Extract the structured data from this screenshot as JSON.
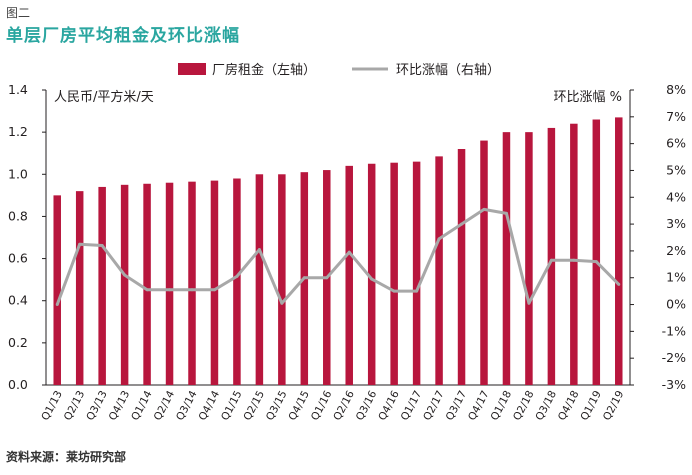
{
  "figure_label": "图二",
  "source": "资料来源：莱坊研究部",
  "colors": {
    "bar": "#b8163d",
    "line": "#a8a8a8",
    "title": "#2aa6a0",
    "axis": "#231f20"
  },
  "chart_data": {
    "type": "bar+line",
    "title": "单层厂房平均租金及环比涨幅",
    "categories": [
      "Q1/13",
      "Q2/13",
      "Q3/13",
      "Q4/13",
      "Q1/14",
      "Q2/14",
      "Q3/14",
      "Q4/14",
      "Q1/15",
      "Q2/15",
      "Q3/15",
      "Q4/15",
      "Q1/16",
      "Q2/16",
      "Q3/16",
      "Q4/16",
      "Q1/17",
      "Q2/17",
      "Q3/17",
      "Q4/17",
      "Q1/18",
      "Q2/18",
      "Q3/18",
      "Q4/18",
      "Q1/19",
      "Q2/19"
    ],
    "series": [
      {
        "name": "厂房租金（左轴）",
        "type": "bar",
        "axis": "left",
        "values": [
          0.9,
          0.92,
          0.94,
          0.95,
          0.955,
          0.96,
          0.965,
          0.97,
          0.98,
          1.0,
          1.0,
          1.01,
          1.02,
          1.04,
          1.05,
          1.055,
          1.06,
          1.085,
          1.12,
          1.16,
          1.2,
          1.2,
          1.22,
          1.24,
          1.26,
          1.27
        ]
      },
      {
        "name": "环比涨幅（右轴）",
        "type": "line",
        "axis": "right",
        "values": [
          0.0,
          2.25,
          2.2,
          1.1,
          0.55,
          0.55,
          0.55,
          0.55,
          1.05,
          2.05,
          0.05,
          1.0,
          1.0,
          1.95,
          0.95,
          0.5,
          0.5,
          2.45,
          3.0,
          3.55,
          3.4,
          0.05,
          1.65,
          1.65,
          1.6,
          0.75
        ]
      }
    ],
    "left_axis": {
      "label": "人民币/平方米/天",
      "ylim": [
        0,
        1.4
      ],
      "ticks": [
        "0.0",
        "0.2",
        "0.4",
        "0.6",
        "0.8",
        "1.0",
        "1.2",
        "1.4"
      ]
    },
    "right_axis": {
      "label": "环比涨幅 %",
      "ylim": [
        -3,
        8
      ],
      "ticks": [
        "-3%",
        "-2%",
        "-1%",
        "0%",
        "1%",
        "2%",
        "3%",
        "4%",
        "5%",
        "6%",
        "7%",
        "8%"
      ]
    },
    "legend_position": "top-center",
    "grid": false
  }
}
